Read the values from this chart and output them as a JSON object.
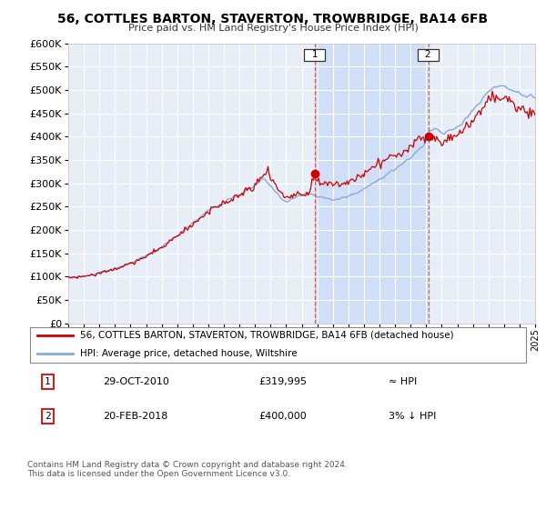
{
  "title": "56, COTTLES BARTON, STAVERTON, TROWBRIDGE, BA14 6FB",
  "subtitle": "Price paid vs. HM Land Registry's House Price Index (HPI)",
  "bg_color": "#e8eef8",
  "legend_entry1": "56, COTTLES BARTON, STAVERTON, TROWBRIDGE, BA14 6FB (detached house)",
  "legend_entry2": "HPI: Average price, detached house, Wiltshire",
  "annotation1_label": "1",
  "annotation1_date": "29-OCT-2010",
  "annotation1_price": "£319,995",
  "annotation1_hpi": "≈ HPI",
  "annotation2_label": "2",
  "annotation2_date": "20-FEB-2018",
  "annotation2_price": "£400,000",
  "annotation2_hpi": "3% ↓ HPI",
  "footer": "Contains HM Land Registry data © Crown copyright and database right 2024.\nThis data is licensed under the Open Government Licence v3.0.",
  "sale_color": "#cc0000",
  "hpi_color": "#88aadd",
  "shade_color": "#d0dff5",
  "ylim_min": 0,
  "ylim_max": 600000,
  "yticks": [
    0,
    50000,
    100000,
    150000,
    200000,
    250000,
    300000,
    350000,
    400000,
    450000,
    500000,
    550000,
    600000
  ],
  "xmin": 1995,
  "xmax": 2025,
  "sale1_x": 2010.83,
  "sale1_y": 319995,
  "sale2_x": 2018.13,
  "sale2_y": 400000,
  "vline1_x": 2010.83,
  "vline2_x": 2018.13
}
